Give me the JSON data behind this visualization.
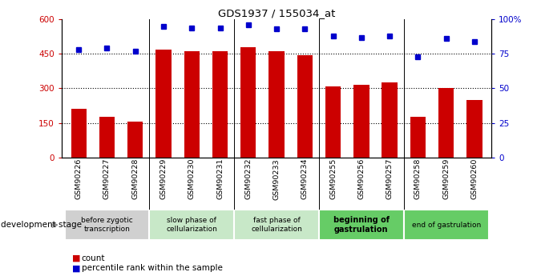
{
  "title": "GDS1937 / 155034_at",
  "samples": [
    "GSM90226",
    "GSM90227",
    "GSM90228",
    "GSM90229",
    "GSM90230",
    "GSM90231",
    "GSM90232",
    "GSM90233",
    "GSM90234",
    "GSM90255",
    "GSM90256",
    "GSM90257",
    "GSM90258",
    "GSM90259",
    "GSM90260"
  ],
  "counts": [
    210,
    175,
    155,
    470,
    460,
    462,
    480,
    460,
    445,
    310,
    315,
    325,
    175,
    300,
    250
  ],
  "percentile": [
    78,
    79,
    77,
    95,
    94,
    94,
    96,
    93,
    93,
    88,
    87,
    88,
    73,
    86,
    84
  ],
  "ylim_left": [
    0,
    600
  ],
  "ylim_right": [
    0,
    100
  ],
  "yticks_left": [
    0,
    150,
    300,
    450,
    600
  ],
  "yticks_right": [
    0,
    25,
    50,
    75,
    100
  ],
  "bar_color": "#CC0000",
  "dot_color": "#0000CC",
  "stage_groups": [
    {
      "label": "before zygotic\ntranscription",
      "samples": [
        "GSM90226",
        "GSM90227",
        "GSM90228"
      ],
      "color": "#d0d0d0",
      "bold": false
    },
    {
      "label": "slow phase of\ncellularization",
      "samples": [
        "GSM90229",
        "GSM90230",
        "GSM90231"
      ],
      "color": "#c8e8c8",
      "bold": false
    },
    {
      "label": "fast phase of\ncellularization",
      "samples": [
        "GSM90232",
        "GSM90233",
        "GSM90234"
      ],
      "color": "#c8e8c8",
      "bold": false
    },
    {
      "label": "beginning of\ngastrulation",
      "samples": [
        "GSM90255",
        "GSM90256",
        "GSM90257"
      ],
      "color": "#66cc66",
      "bold": true
    },
    {
      "label": "end of gastrulation",
      "samples": [
        "GSM90258",
        "GSM90259",
        "GSM90260"
      ],
      "color": "#66cc66",
      "bold": false
    }
  ],
  "dev_stage_label": "development stage",
  "legend_count": "count",
  "legend_pct": "percentile rank within the sample",
  "bg_color": "#ffffff"
}
